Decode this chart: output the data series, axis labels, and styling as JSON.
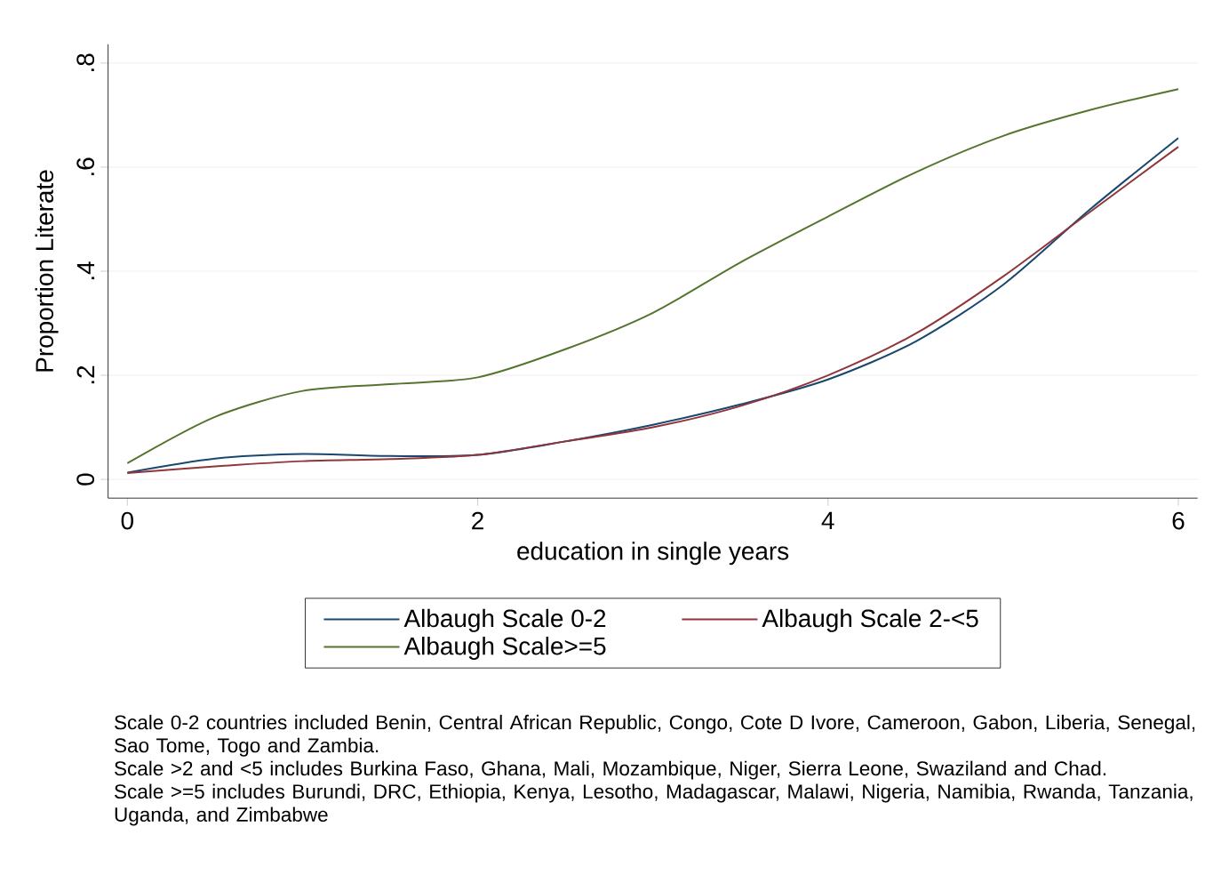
{
  "chart_data": {
    "type": "line",
    "xlabel": "education in single years",
    "ylabel": "Proportion Literate",
    "xlim": [
      -0.11,
      6.11
    ],
    "ylim": [
      -0.036,
      0.836
    ],
    "xticks": [
      0,
      2,
      4,
      6
    ],
    "yticks": [
      0,
      {
        "value": 0.2,
        "label": ".2"
      },
      {
        "value": 0.4,
        "label": ".4"
      },
      {
        "value": 0.6,
        "label": ".6"
      },
      {
        "value": 0.8,
        "label": ".8"
      }
    ],
    "grid": "y",
    "legend": "bottom",
    "marker": "none",
    "line_style": "solid",
    "x": [
      0,
      0.5,
      1,
      1.5,
      2,
      2.5,
      3,
      3.5,
      4,
      4.5,
      5,
      5.5,
      6
    ],
    "series": [
      {
        "name": "Albaugh Scale 0-2",
        "color": "#1a476f",
        "values": [
          0.013,
          0.04,
          0.049,
          0.045,
          0.047,
          0.073,
          0.105,
          0.144,
          0.192,
          0.265,
          0.374,
          0.52,
          0.656
        ]
      },
      {
        "name": "Albaugh Scale 2-<5",
        "color": "#90353b",
        "values": [
          0.012,
          0.025,
          0.035,
          0.039,
          0.047,
          0.073,
          0.1,
          0.141,
          0.2,
          0.28,
          0.39,
          0.515,
          0.639
        ]
      },
      {
        "name": "Albaugh Scale>=5",
        "color": "#55752f",
        "values": [
          0.031,
          0.12,
          0.17,
          0.183,
          0.196,
          0.25,
          0.32,
          0.417,
          0.505,
          0.59,
          0.66,
          0.71,
          0.75
        ]
      }
    ],
    "annotations": [
      "Scale 0-2 countries included Benin, Central African Republic, Congo, Cote D Ivore, Cameroon, Gabon, Liberia, Senegal, Sao Tome, Togo and Zambia.",
      "Scale >2 and <5 includes Burkina Faso, Ghana, Mali, Mozambique, Niger, Sierra Leone, Swaziland and Chad.",
      "Scale >=5 includes Burundi, DRC, Ethiopia, Kenya, Lesotho, Madagascar, Malawi, Nigeria, Namibia, Rwanda, Tanzania, Uganda, and Zimbabwe"
    ]
  }
}
